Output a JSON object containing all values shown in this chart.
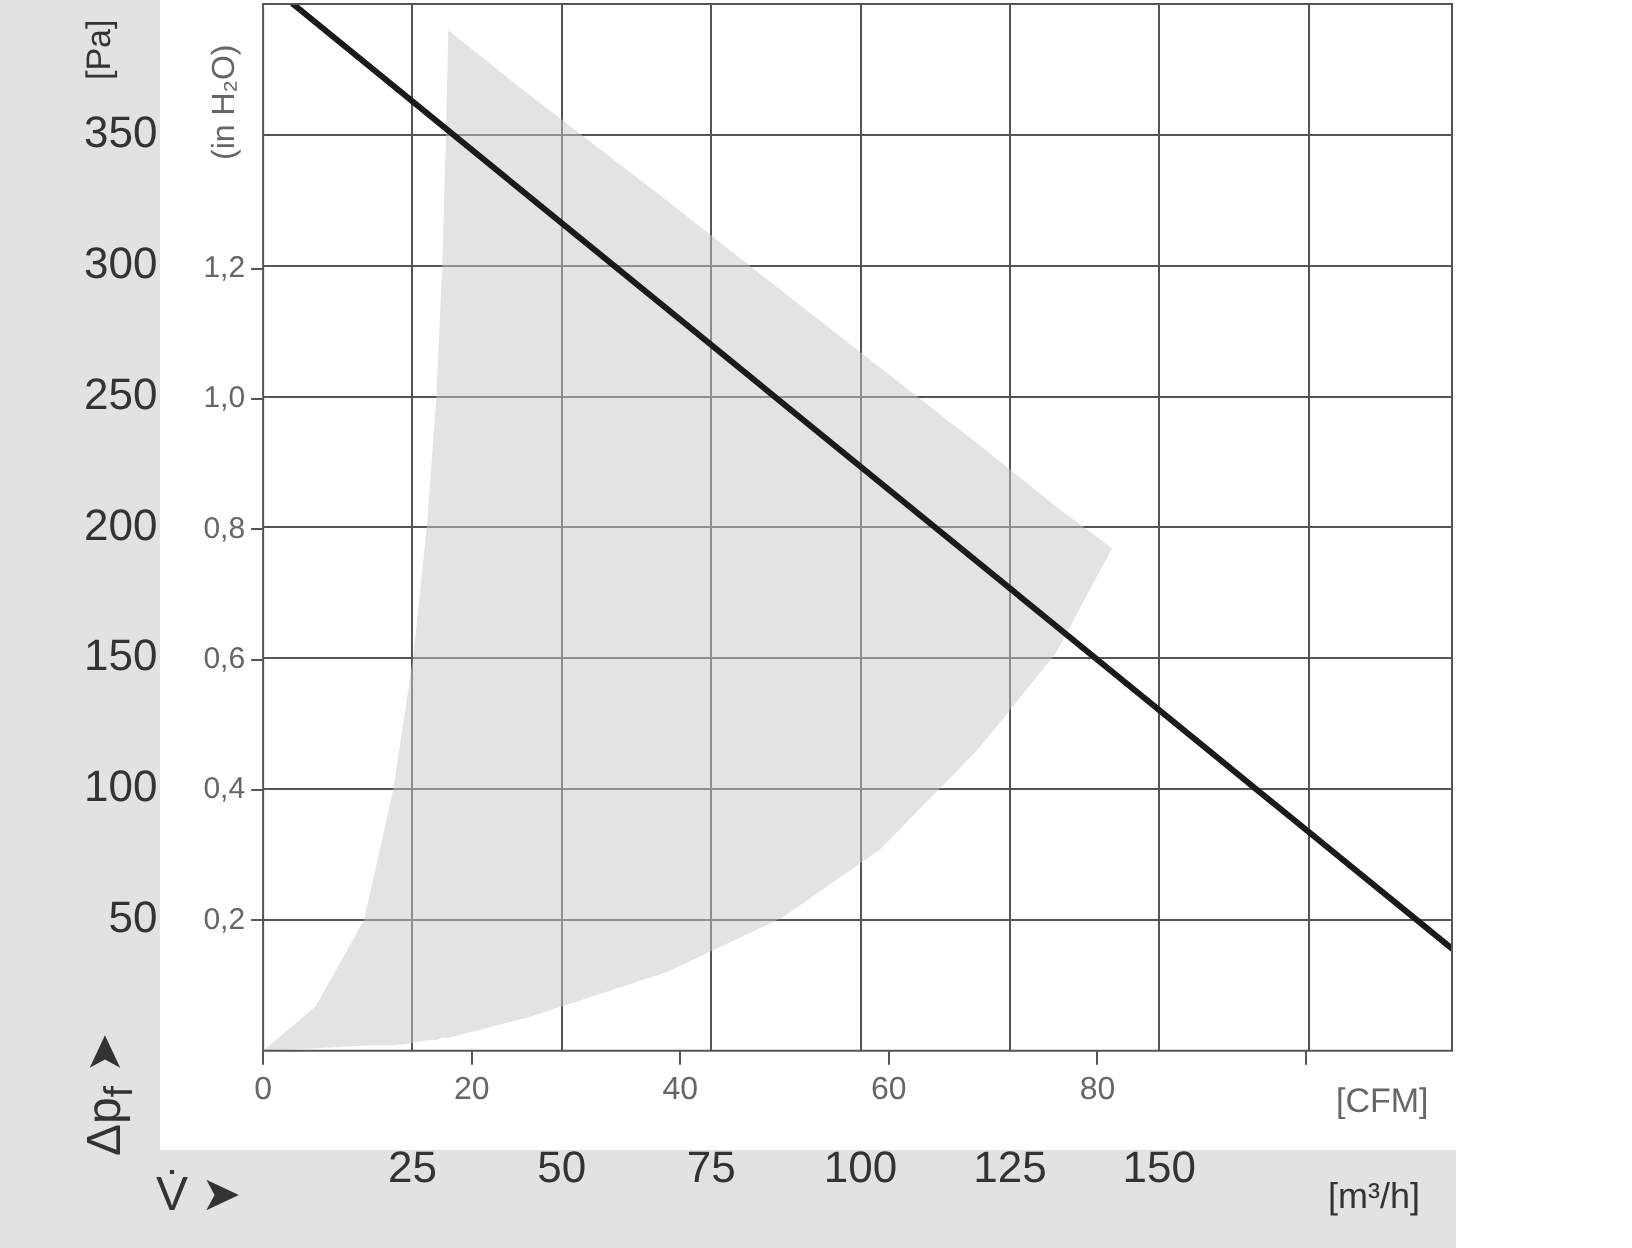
{
  "chart_data": {
    "type": "line",
    "xlabel": "[m³/h]",
    "x2label": "[CFM]",
    "ylabel": "[Pa]",
    "y2label": "(in H₂O)",
    "annotations": [
      "V̇ ➤",
      "Δp$_{f}$ ➤"
    ],
    "xlim": [
      0,
      199
    ],
    "xticks": [
      25,
      50,
      75,
      100,
      125,
      150,
      {
        "value": 175,
        "label": null
      }
    ],
    "x2lim": [
      0,
      114
    ],
    "x2ticks": [
      0,
      20,
      40,
      60,
      80,
      {
        "value": 100,
        "label": null
      }
    ],
    "ylim": [
      0,
      400
    ],
    "yticks": [
      50,
      100,
      150,
      200,
      250,
      300,
      350
    ],
    "y2lim": [
      0,
      1.606
    ],
    "y2ticks": [
      {
        "value": 0.2,
        "label": "0,2"
      },
      {
        "value": 0.4,
        "label": "0,4"
      },
      {
        "value": 0.6,
        "label": "0,6"
      },
      {
        "value": 0.8,
        "label": "0,8"
      },
      {
        "value": 1.0,
        "label": "1,0"
      },
      {
        "value": 1.2,
        "label": "1,2"
      }
    ],
    "grid": true,
    "marker": "none",
    "series": [
      {
        "type": "area",
        "color": "#e3e3e3",
        "x": [
          0,
          8.8,
          16.9,
          21.8,
          25.1,
          27.4,
          29,
          30,
          30.6,
          31,
          44.7,
          67.5,
          87,
          103.3,
          119.6,
          132.7,
          142.1
        ],
        "values": [
          null,
          null,
          null,
          null,
          null,
          null,
          null,
          null,
          null,
          null,
          null,
          null,
          null,
          null,
          null,
          null,
          null
        ],
        "upper": [
          0,
          17,
          50,
          100,
          150,
          200,
          250,
          300,
          350,
          390,
          365,
          325,
          290,
          261,
          232,
          208,
          192
        ],
        "lower": [
          0,
          1,
          2,
          2,
          3,
          4,
          4,
          5,
          5,
          5,
          13,
          30,
          51,
          77,
          115,
          152,
          192
        ]
      },
      {
        "color": "#1a1a1a",
        "x": [
          5,
          199
        ],
        "values": [
          400,
          39
        ]
      }
    ]
  }
}
